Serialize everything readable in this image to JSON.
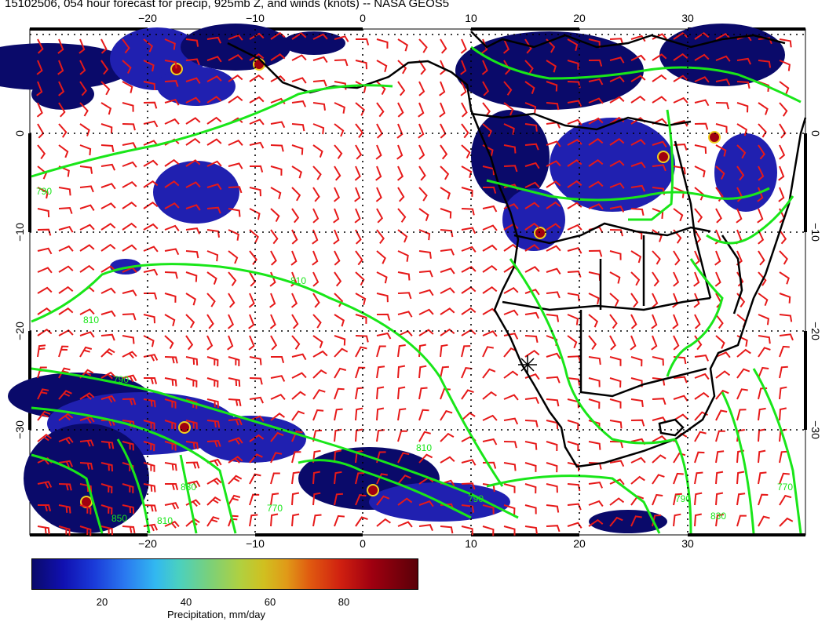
{
  "title": "15102506, 054 hour forecast for precip, 925mb Z, and winds (knots) -- NASA GEOS5",
  "lon_labels": [
    "−20",
    "−10",
    "0",
    "10",
    "20",
    "30"
  ],
  "lat_labels": [
    "0",
    "−10",
    "−20",
    "−30"
  ],
  "contour_labels": [
    "790",
    "790",
    "810",
    "810",
    "810",
    "790",
    "830",
    "850",
    "810",
    "770",
    "790",
    "830",
    "770"
  ],
  "colorbar": {
    "label": "Precipitation, mm/day",
    "ticks": [
      "20",
      "40",
      "60",
      "80"
    ]
  },
  "colors": {
    "contour": "#19e619",
    "wind_barb": "#e61919",
    "coast": "#000000",
    "precip_low": "#0a0a6a",
    "precip_high": "#5a0008"
  }
}
